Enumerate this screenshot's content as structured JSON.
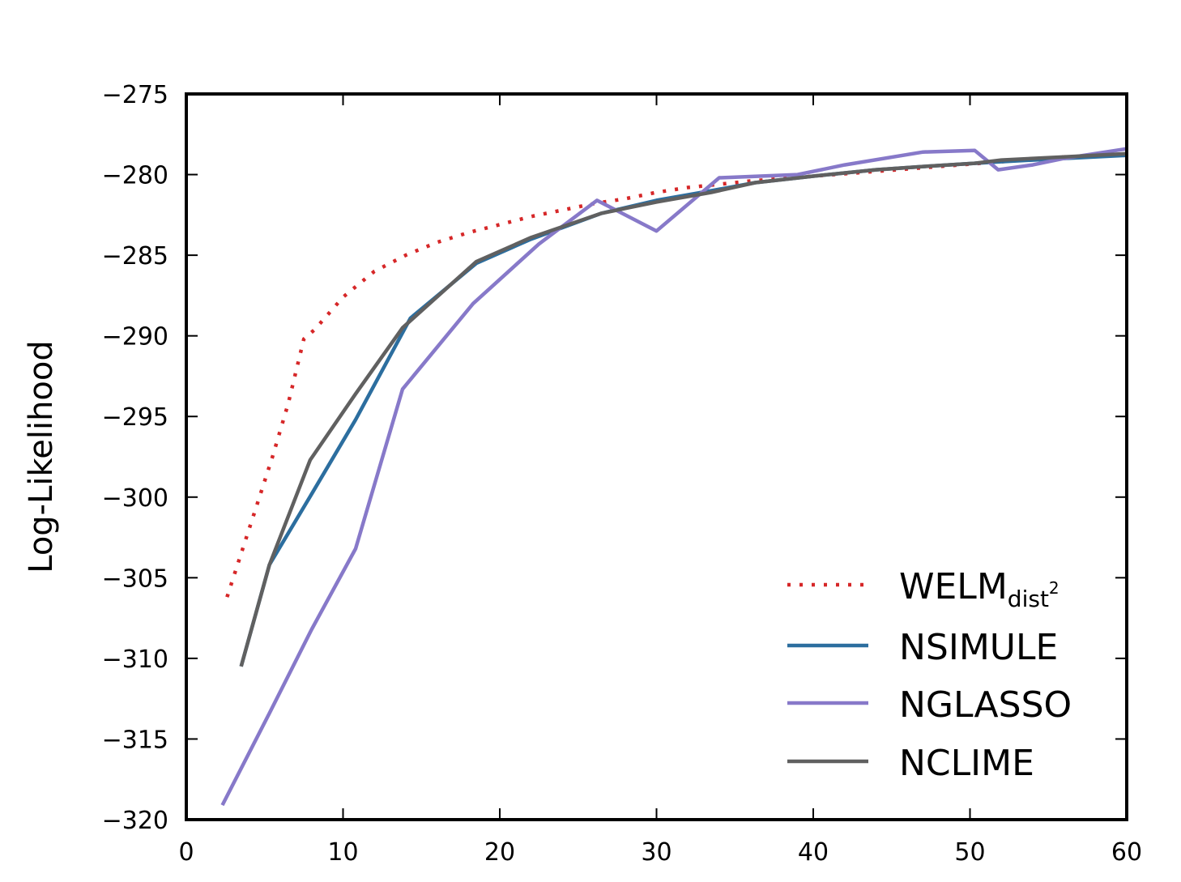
{
  "chart_data": {
    "type": "line",
    "title": "",
    "xlabel": "",
    "ylabel": "Log-Likelihood",
    "xlim": [
      0,
      60
    ],
    "ylim": [
      -320,
      -275
    ],
    "xticks": [
      0,
      10,
      20,
      30,
      40,
      50,
      60
    ],
    "yticks": [
      -275,
      -280,
      -285,
      -290,
      -295,
      -300,
      -305,
      -310,
      -315,
      -320
    ],
    "xtick_labels": [
      "0",
      "10",
      "20",
      "30",
      "40",
      "50",
      "60"
    ],
    "ytick_labels": [
      "−275",
      "−280",
      "−285",
      "−290",
      "−295",
      "−300",
      "−305",
      "−310",
      "−315",
      "−320"
    ],
    "grid": false,
    "legend_position": "lower-right",
    "series": [
      {
        "name": "WELM",
        "name_sub": "dist",
        "name_sup": "2",
        "color": "#d62728",
        "style": "dotted",
        "x": [
          2.6,
          3.5,
          4.5,
          5.5,
          6.5,
          7.5,
          8.2,
          10,
          12,
          14,
          16,
          18,
          20,
          22,
          24,
          26,
          28,
          30,
          32,
          34,
          36,
          40,
          44,
          48,
          52,
          56,
          60
        ],
        "y": [
          -306.2,
          -303.5,
          -300.5,
          -297.5,
          -294.2,
          -290.2,
          -289.6,
          -287.6,
          -286.0,
          -285.0,
          -284.2,
          -283.6,
          -283.1,
          -282.6,
          -282.2,
          -281.8,
          -281.5,
          -281.1,
          -280.8,
          -280.6,
          -280.4,
          -280.1,
          -279.8,
          -279.5,
          -279.2,
          -278.9,
          -278.8
        ]
      },
      {
        "name": "NSIMULE",
        "color": "#2c6e9f",
        "style": "solid",
        "x": [
          3.5,
          5.3,
          8.0,
          10.8,
          14.3,
          18.5,
          22,
          26.5,
          30,
          33.5,
          36.3,
          40,
          44,
          47,
          50.3,
          52,
          56,
          60
        ],
        "y": [
          -310.5,
          -304.2,
          -299.8,
          -295.2,
          -288.9,
          -285.5,
          -284.0,
          -282.4,
          -281.6,
          -281.0,
          -280.5,
          -280.1,
          -279.7,
          -279.5,
          -279.3,
          -279.2,
          -279.0,
          -278.8
        ]
      },
      {
        "name": "NGLASSO",
        "color": "#8779c9",
        "style": "solid",
        "x": [
          2.3,
          5.3,
          8.0,
          10.8,
          13.8,
          18.3,
          22.5,
          26.2,
          30.0,
          34.0,
          39,
          42,
          47.0,
          50.3,
          51.8,
          54,
          56,
          60
        ],
        "y": [
          -319.1,
          -313.4,
          -308.2,
          -303.2,
          -293.3,
          -288.0,
          -284.3,
          -281.6,
          -283.5,
          -280.2,
          -280.0,
          -279.4,
          -278.6,
          -278.5,
          -279.7,
          -279.4,
          -279.0,
          -278.4
        ]
      },
      {
        "name": "NCLIME",
        "color": "#606060",
        "style": "solid",
        "x": [
          3.5,
          5.3,
          7.9,
          10.8,
          13.8,
          18.5,
          22,
          26.5,
          30,
          33.5,
          36.3,
          40,
          44,
          47,
          50.3,
          52,
          56,
          60
        ],
        "y": [
          -310.5,
          -304.2,
          -297.7,
          -293.6,
          -289.5,
          -285.4,
          -283.9,
          -282.4,
          -281.7,
          -281.1,
          -280.5,
          -280.1,
          -279.7,
          -279.5,
          -279.3,
          -279.1,
          -278.9,
          -278.7
        ]
      }
    ]
  }
}
